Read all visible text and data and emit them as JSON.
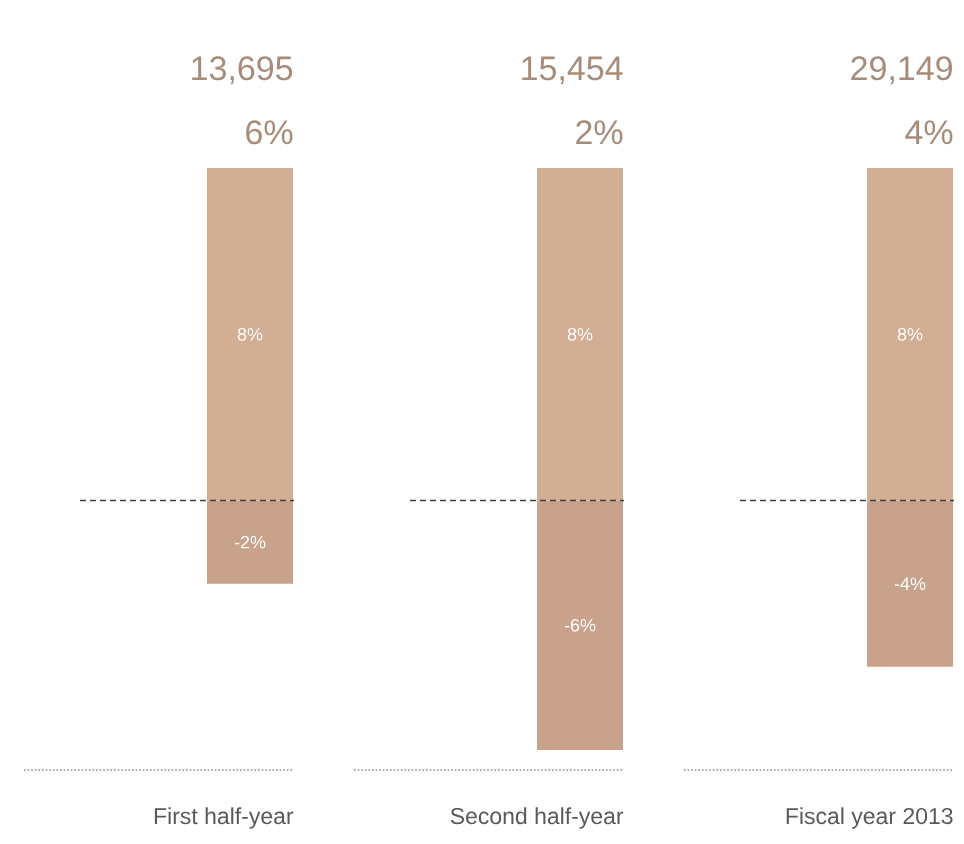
{
  "chart_data": {
    "type": "bar",
    "stacked": true,
    "categories": [
      "First half-year",
      "Second half-year",
      "Fiscal year 2013"
    ],
    "series": [
      {
        "color": "#d2ae94",
        "values": [
          8,
          8,
          8
        ],
        "value_labels": [
          "8%",
          "8%",
          "8%"
        ]
      },
      {
        "color": "#c8a28a",
        "values": [
          -2,
          -6,
          -4
        ],
        "value_labels": [
          "-2%",
          "-6%",
          "-4%"
        ]
      }
    ],
    "ylim": [
      -6,
      8
    ],
    "totals": [
      "6%",
      "2%",
      "4%"
    ],
    "annotations": [
      "13,695",
      "15,454",
      "29,149"
    ],
    "ref_lines": [
      {
        "axis": "y",
        "value": 0,
        "color": "#404040",
        "line_style": "dashed"
      }
    ]
  }
}
